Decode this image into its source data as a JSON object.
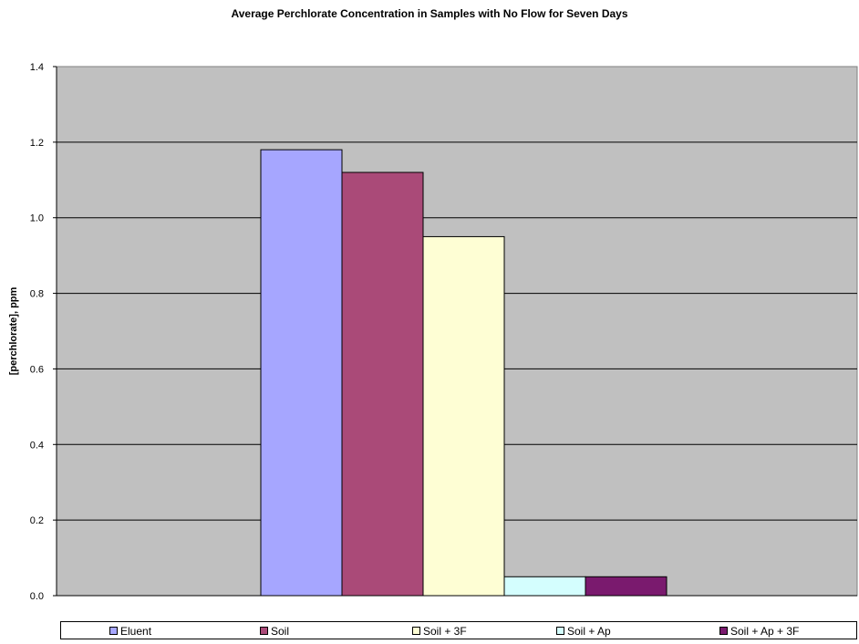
{
  "chart_data": {
    "type": "bar",
    "title": "Average Perchlorate Concentration in Samples with No Flow for Seven Days",
    "xlabel": "",
    "ylabel": "[perchlorate], ppm",
    "ylim": [
      0,
      1.4
    ],
    "yticks": [
      "0.0",
      "0.2",
      "0.4",
      "0.6",
      "0.8",
      "1.0",
      "1.2",
      "1.4"
    ],
    "grid": true,
    "legend_position": "bottom",
    "background": "#c0c0c0",
    "series": [
      {
        "name": "Eluent",
        "value": 1.18,
        "color": "#a6a6ff"
      },
      {
        "name": "Soil",
        "value": 1.12,
        "color": "#aa4a78"
      },
      {
        "name": "Soil + 3F",
        "value": 0.95,
        "color": "#fefed4"
      },
      {
        "name": "Soil + Ap",
        "value": 0.05,
        "color": "#d4fefe"
      },
      {
        "name": "Soil + Ap + 3F",
        "value": 0.05,
        "color": "#7a1a6e"
      }
    ]
  }
}
